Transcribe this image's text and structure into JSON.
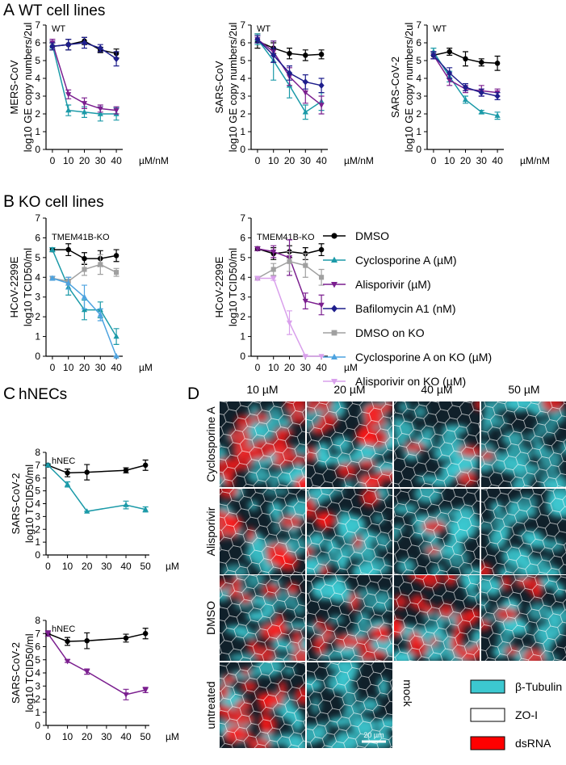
{
  "panel_labels": [
    {
      "letter": "A",
      "title": "WT cell lines"
    },
    {
      "letter": "B",
      "title": "KO cell lines"
    },
    {
      "letter": "C",
      "title": "hNECs"
    },
    {
      "letter": "D"
    }
  ],
  "legend": [
    {
      "name": "DMSO",
      "color": "#000000",
      "marker": "circle"
    },
    {
      "name": "Cyclosporine A (µM)",
      "color": "#1b9aa8",
      "marker": "triangle"
    },
    {
      "name": "Alisporivir (µM)",
      "color": "#7b1f8f",
      "marker": "triangle-down"
    },
    {
      "name": "Bafilomycin A1 (nM)",
      "color": "#1e1e8c",
      "marker": "diamond"
    },
    {
      "name": "DMSO on KO",
      "color": "#a0a0a0",
      "marker": "square"
    },
    {
      "name": "Cyclosporine A on KO (µM)",
      "color": "#4da3e0",
      "marker": "triangle"
    },
    {
      "name": "Alisporivir on KO (µM)",
      "color": "#d9a0ec",
      "marker": "triangle-down"
    }
  ],
  "chart_data": [
    {
      "type": "line",
      "annotation": "WT",
      "ylabel": [
        "MERS-CoV",
        "log10 GE copy numbers/2ul"
      ],
      "x_unit_label": "µM/nM",
      "x": [
        0,
        10,
        20,
        30,
        40
      ],
      "xlim": [
        -4,
        44
      ],
      "xticks": [
        0,
        10,
        20,
        30,
        40
      ],
      "ylim": [
        0,
        7
      ],
      "yticks": [
        0,
        1,
        2,
        3,
        4,
        5,
        6,
        7
      ],
      "series": [
        {
          "name": "DMSO",
          "color": "#000000",
          "marker": "circle",
          "values": [
            5.8,
            5.9,
            6.1,
            5.6,
            5.4
          ],
          "errors": [
            0.2,
            0.3,
            0.2,
            0.15,
            0.25
          ]
        },
        {
          "name": "Cyclosporine A (µM)",
          "color": "#1b9aa8",
          "marker": "triangle",
          "values": [
            5.9,
            2.2,
            2.1,
            2.0,
            2.0
          ],
          "errors": [
            0.2,
            0.3,
            0.3,
            0.4,
            0.35
          ]
        },
        {
          "name": "Alisporivir (µM)",
          "color": "#7b1f8f",
          "marker": "triangle-down",
          "values": [
            6.0,
            3.1,
            2.6,
            2.3,
            2.2
          ],
          "errors": [
            0.2,
            0.25,
            0.3,
            0.2,
            0.2
          ]
        },
        {
          "name": "Bafilomycin A1 (nM)",
          "color": "#1e1e8c",
          "marker": "diamond",
          "values": [
            5.8,
            5.9,
            6.0,
            5.7,
            5.1
          ],
          "errors": [
            0.2,
            0.3,
            0.3,
            0.2,
            0.4
          ]
        }
      ]
    },
    {
      "type": "line",
      "annotation": "WT",
      "ylabel": [
        "SARS-CoV",
        "log10 GE copy numbers/2ul"
      ],
      "x_unit_label": "µM/nM",
      "x": [
        0,
        10,
        20,
        30,
        40
      ],
      "xlim": [
        -4,
        44
      ],
      "xticks": [
        0,
        10,
        20,
        30,
        40
      ],
      "ylim": [
        0,
        7
      ],
      "yticks": [
        0,
        1,
        2,
        3,
        4,
        5,
        6,
        7
      ],
      "series": [
        {
          "name": "DMSO",
          "color": "#000000",
          "marker": "circle",
          "values": [
            6.1,
            5.7,
            5.4,
            5.3,
            5.35
          ],
          "errors": [
            0.4,
            0.3,
            0.3,
            0.3,
            0.25
          ]
        },
        {
          "name": "Cyclosporine A (µM)",
          "color": "#1b9aa8",
          "marker": "triangle",
          "values": [
            6.2,
            5.0,
            3.6,
            2.1,
            2.7
          ],
          "errors": [
            0.3,
            1.1,
            0.7,
            0.4,
            0.5
          ]
        },
        {
          "name": "Alisporivir (µM)",
          "color": "#7b1f8f",
          "marker": "triangle-down",
          "values": [
            6.2,
            5.5,
            4.1,
            3.2,
            2.5
          ],
          "errors": [
            0.2,
            0.6,
            0.5,
            0.6,
            0.5
          ]
        },
        {
          "name": "Bafilomycin A1 (nM)",
          "color": "#1e1e8c",
          "marker": "diamond",
          "values": [
            6.2,
            5.3,
            4.3,
            3.8,
            3.6
          ],
          "errors": [
            0.2,
            0.4,
            0.4,
            0.4,
            0.4
          ]
        }
      ]
    },
    {
      "type": "line",
      "annotation": "WT",
      "ylabel": [
        "SARS-CoV-2",
        "log10 GE copy numbers/2ul"
      ],
      "x_unit_label": "µM/nM",
      "x": [
        0,
        10,
        20,
        30,
        40
      ],
      "xlim": [
        -4,
        44
      ],
      "xticks": [
        0,
        10,
        20,
        30,
        40
      ],
      "ylim": [
        0,
        7
      ],
      "yticks": [
        0,
        1,
        2,
        3,
        4,
        5,
        6,
        7
      ],
      "series": [
        {
          "name": "DMSO",
          "color": "#000000",
          "marker": "circle",
          "values": [
            5.3,
            5.5,
            5.1,
            4.9,
            4.85
          ],
          "errors": [
            0.2,
            0.2,
            0.4,
            0.2,
            0.4
          ]
        },
        {
          "name": "Cyclosporine A (µM)",
          "color": "#1b9aa8",
          "marker": "triangle",
          "values": [
            5.5,
            4.1,
            2.8,
            2.1,
            1.9
          ],
          "errors": [
            0.2,
            0.3,
            0.2,
            0.1,
            0.2
          ]
        },
        {
          "name": "Alisporivir (µM)",
          "color": "#7b1f8f",
          "marker": "triangle-down",
          "values": [
            5.3,
            3.9,
            3.4,
            3.3,
            3.2
          ],
          "errors": [
            0.2,
            0.3,
            0.2,
            0.3,
            0.2
          ]
        },
        {
          "name": "Bafilomycin A1 (nM)",
          "color": "#1e1e8c",
          "marker": "diamond",
          "values": [
            5.3,
            4.3,
            3.5,
            3.2,
            3.0
          ],
          "errors": [
            0.2,
            0.3,
            0.2,
            0.2,
            0.2
          ]
        }
      ]
    },
    {
      "type": "line",
      "annotation": "TMEM41B-KO",
      "ylabel": [
        "HCoV-2299E",
        "log10 TCID50/ml"
      ],
      "x_unit_label": "µM",
      "x": [
        0,
        10,
        20,
        30,
        40
      ],
      "xlim": [
        -4,
        44
      ],
      "xticks": [
        0,
        10,
        20,
        30,
        40
      ],
      "ylim": [
        0,
        7
      ],
      "yticks": [
        0,
        1,
        2,
        3,
        4,
        5,
        6,
        7
      ],
      "series": [
        {
          "name": "DMSO",
          "color": "#000000",
          "marker": "circle",
          "values": [
            5.4,
            5.4,
            4.95,
            4.95,
            5.1
          ],
          "errors": [
            0.1,
            0.3,
            0.3,
            0.4,
            0.3
          ]
        },
        {
          "name": "Cyclosporine A (µM)",
          "color": "#1b9aa8",
          "marker": "triangle",
          "values": [
            5.4,
            3.5,
            2.35,
            2.35,
            1.0
          ],
          "errors": [
            0.1,
            0.4,
            0.5,
            0.4,
            0.4
          ]
        },
        {
          "name": "DMSO on KO",
          "color": "#a0a0a0",
          "marker": "square",
          "values": [
            3.95,
            3.8,
            4.4,
            4.65,
            4.25
          ],
          "errors": [
            0.1,
            0.2,
            0.3,
            0.5,
            0.2
          ]
        },
        {
          "name": "Cyclosporine A on KO (µM)",
          "color": "#4da3e0",
          "marker": "triangle",
          "values": [
            3.95,
            3.7,
            3.0,
            2.1,
            0
          ],
          "errors": [
            0.1,
            0.3,
            0.6,
            0.3,
            0
          ]
        }
      ]
    },
    {
      "type": "line",
      "annotation": "TMEM41B-KO",
      "ylabel": [
        "HCoV-2299E",
        "log10 TCID50/ml"
      ],
      "x_unit_label": "µM",
      "x": [
        0,
        10,
        20,
        30,
        40
      ],
      "xlim": [
        -4,
        44
      ],
      "xticks": [
        0,
        10,
        20,
        30,
        40
      ],
      "ylim": [
        0,
        7
      ],
      "yticks": [
        0,
        1,
        2,
        3,
        4,
        5,
        6,
        7
      ],
      "series": [
        {
          "name": "DMSO",
          "color": "#000000",
          "marker": "circle",
          "values": [
            5.45,
            5.2,
            5.3,
            5.2,
            5.4
          ],
          "errors": [
            0.1,
            0.3,
            0.3,
            0.3,
            0.3
          ]
        },
        {
          "name": "Alisporivir (µM)",
          "color": "#7b1f8f",
          "marker": "triangle-down",
          "values": [
            5.45,
            5.3,
            5.0,
            2.8,
            2.6
          ],
          "errors": [
            0.1,
            0.3,
            0.9,
            0.4,
            0.5
          ]
        },
        {
          "name": "DMSO on KO",
          "color": "#a0a0a0",
          "marker": "square",
          "values": [
            3.95,
            4.4,
            4.8,
            4.6,
            4.0
          ],
          "errors": [
            0.1,
            0.3,
            0.5,
            0.6,
            0.4
          ]
        },
        {
          "name": "Alisporivir on KO (µM)",
          "color": "#d9a0ec",
          "marker": "triangle-down",
          "values": [
            3.95,
            3.95,
            1.7,
            0,
            0
          ],
          "errors": [
            0.1,
            0.1,
            0.6,
            0,
            0
          ]
        }
      ]
    },
    {
      "type": "line",
      "annotation": "hNEC",
      "ylabel": [
        "SARS-CoV-2",
        "log10 TCID50/ml"
      ],
      "x_unit_label": "µM",
      "x": [
        0,
        10,
        20,
        40,
        50
      ],
      "xlim": [
        -1,
        52
      ],
      "xticks": [
        0,
        10,
        20,
        30,
        40,
        50
      ],
      "ylim": [
        0,
        8
      ],
      "yticks": [
        0,
        1,
        2,
        3,
        4,
        5,
        6,
        7,
        8
      ],
      "series": [
        {
          "name": "DMSO",
          "color": "#000000",
          "marker": "circle",
          "values": [
            7.0,
            6.4,
            6.45,
            6.6,
            7.0
          ],
          "errors": [
            0.1,
            0.3,
            0.6,
            0.2,
            0.4
          ]
        },
        {
          "name": "Cyclosporine A (µM)",
          "color": "#1b9aa8",
          "marker": "triangle",
          "values": [
            7.0,
            5.5,
            3.4,
            3.9,
            3.55
          ],
          "errors": [
            0.1,
            0.2,
            0,
            0.3,
            0.2
          ]
        }
      ]
    },
    {
      "type": "line",
      "annotation": "hNEC",
      "ylabel": [
        "SARS-CoV-2",
        "log10 TCID50/ml"
      ],
      "x_unit_label": "µM",
      "x": [
        0,
        10,
        20,
        40,
        50
      ],
      "xlim": [
        -1,
        52
      ],
      "xticks": [
        0,
        10,
        20,
        30,
        40,
        50
      ],
      "ylim": [
        0,
        8
      ],
      "yticks": [
        0,
        1,
        2,
        3,
        4,
        5,
        6,
        7,
        8
      ],
      "series": [
        {
          "name": "DMSO",
          "color": "#000000",
          "marker": "circle",
          "values": [
            7.0,
            6.4,
            6.45,
            6.65,
            7.0
          ],
          "errors": [
            0.2,
            0.3,
            0.6,
            0.3,
            0.4
          ]
        },
        {
          "name": "Alisporivir (µM)",
          "color": "#7b1f8f",
          "marker": "triangle-down",
          "values": [
            7.0,
            4.9,
            4.1,
            2.35,
            2.7
          ],
          "errors": [
            0.2,
            0.1,
            0.2,
            0.4,
            0.2
          ]
        }
      ]
    }
  ],
  "panel_d": {
    "columns": [
      "10 µM",
      "20 µM",
      "40 µM",
      "50 µM"
    ],
    "rows": [
      "Cyclosporine A",
      "Alisporivir",
      "DMSO",
      "untreated"
    ],
    "mock": "mock",
    "stain_legend": [
      {
        "name": "β-Tubulin",
        "color": "#3cc8d0"
      },
      {
        "name": "ZO-I",
        "color": "#ffffff"
      },
      {
        "name": "dsRNA",
        "color": "#ff0000"
      }
    ],
    "scale_bar": "20 µm"
  }
}
